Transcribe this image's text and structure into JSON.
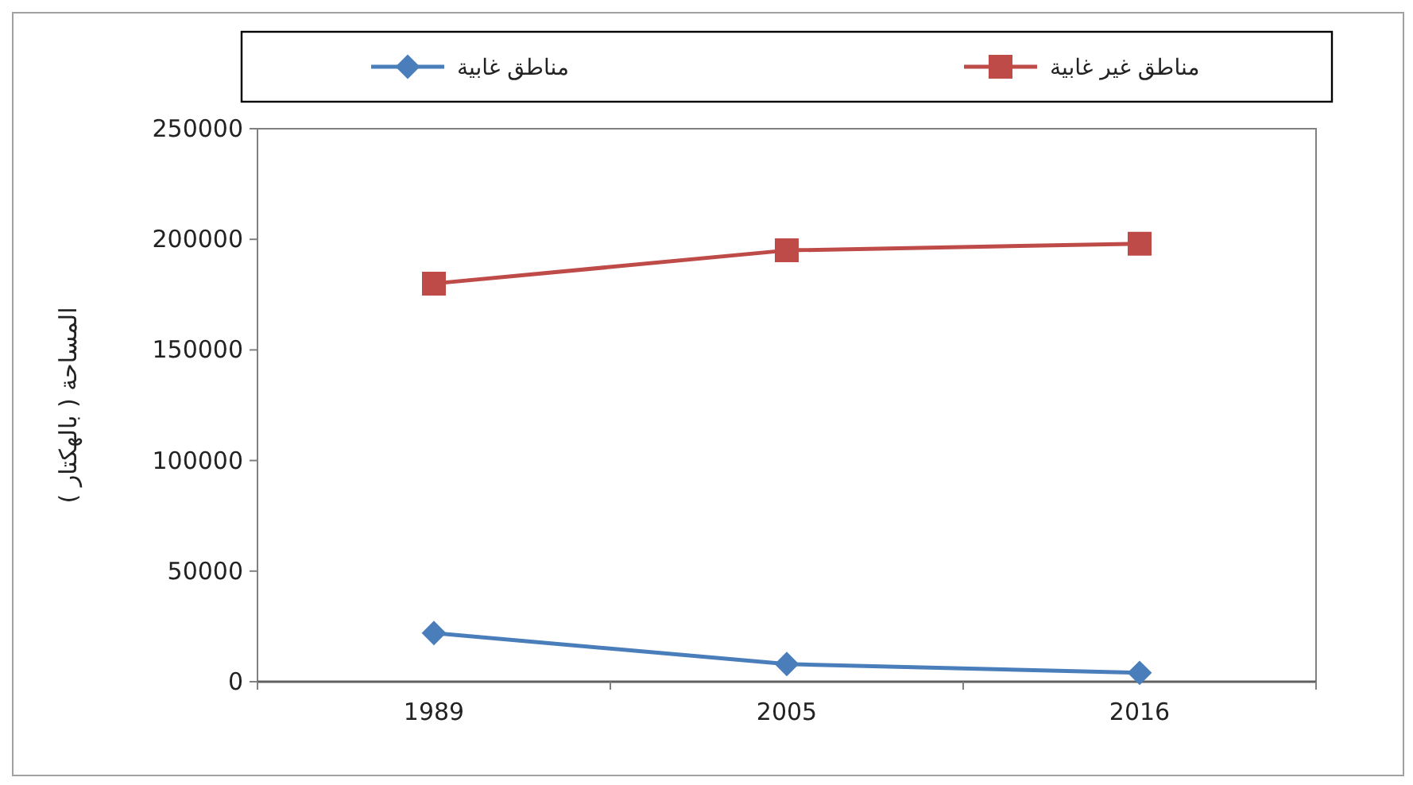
{
  "chart_data": {
    "type": "line",
    "ylabel": "المساحة ( بالهكتار )",
    "categories": [
      "1989",
      "2005",
      "2016"
    ],
    "series": [
      {
        "name": "مناطق غابية",
        "color": "#4a7ebb",
        "marker": "diamond",
        "values": [
          22000,
          8000,
          4000
        ]
      },
      {
        "name": "مناطق غير غابية",
        "color": "#be4b48",
        "marker": "square",
        "values": [
          180000,
          195000,
          198000
        ]
      }
    ],
    "ylim": [
      0,
      250000
    ],
    "yticks": [
      0,
      50000,
      100000,
      150000,
      200000,
      250000
    ],
    "grid": false,
    "legend": "top",
    "line_style": "solid"
  }
}
